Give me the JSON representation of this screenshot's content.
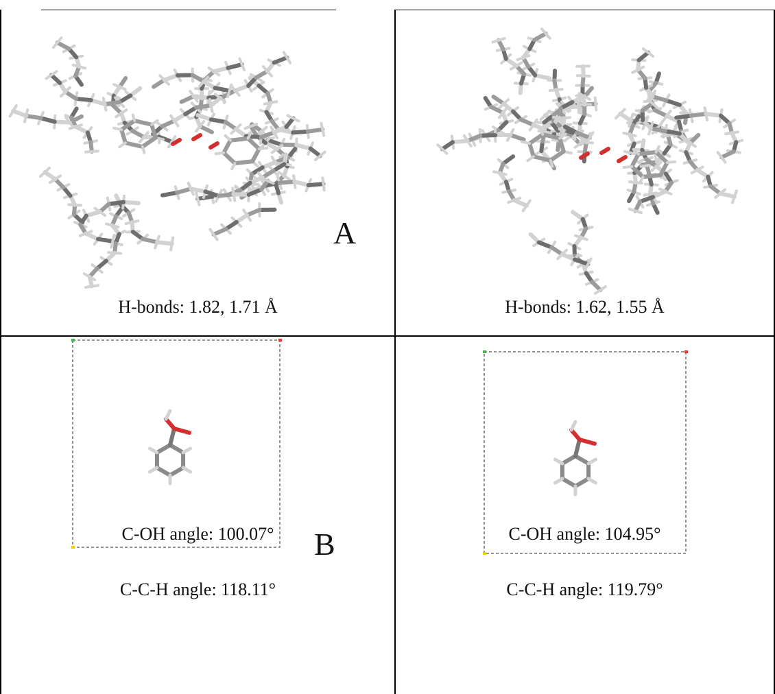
{
  "figure": {
    "cells": [
      {
        "id": "a-left",
        "caption_lines": [
          "H-bonds: 1.82, 1.71 Å"
        ],
        "panel_label": "A"
      },
      {
        "id": "a-right",
        "caption_lines": [
          "H-bonds: 1.62, 1.55 Å"
        ],
        "panel_label": ""
      },
      {
        "id": "b-left",
        "caption_lines": [
          "C-OH angle: 100.07°",
          "C-C-H angle: 118.11°"
        ],
        "panel_label": "B"
      },
      {
        "id": "b-right",
        "caption_lines": [
          "C-OH angle: 104.95°",
          "C-C-H angle: 119.79°"
        ],
        "panel_label": ""
      }
    ],
    "colors": {
      "bond_dark": "#6e6e6e",
      "bond_mid": "#9b9b9b",
      "bond_light": "#d2d2d2",
      "oxygen": "#d32f2f",
      "box_dash": "#555555",
      "corner_green": "#4caf50",
      "corner_red": "#e53935",
      "corner_yellow": "#e6d200"
    }
  }
}
